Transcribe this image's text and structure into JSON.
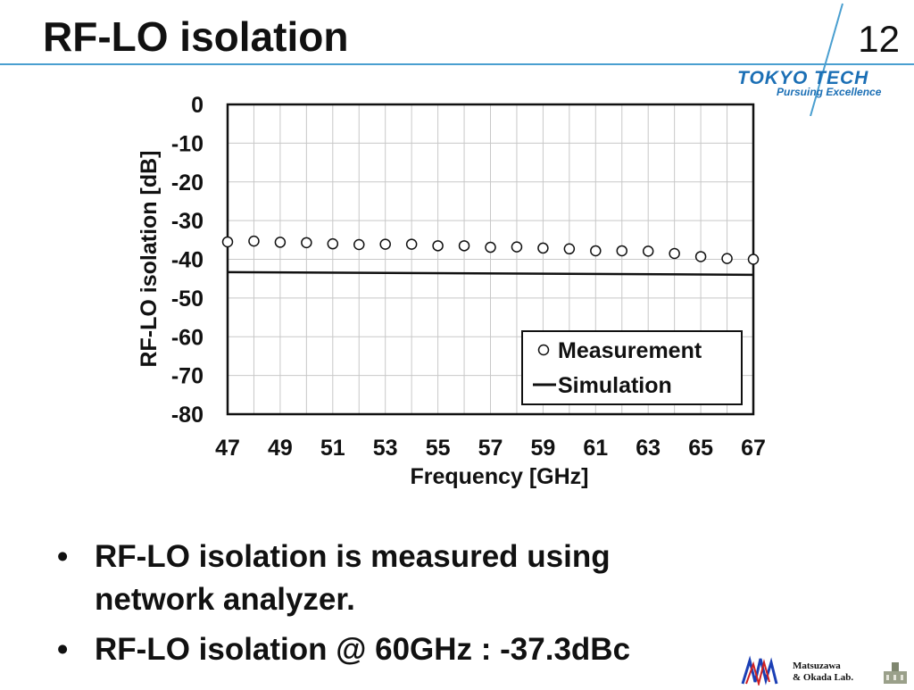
{
  "slide": {
    "title": "RF-LO isolation",
    "number": "12"
  },
  "logo": {
    "main": "TOKYO TECH",
    "sub": "Pursuing Excellence"
  },
  "lab": {
    "line1": "Matsuzawa",
    "line2": "& Okada Lab."
  },
  "bullets": [
    "RF-LO isolation is measured  using network analyzer.",
    "RF-LO isolation @ 60GHz : -37.3dBc"
  ],
  "chart_data": {
    "type": "line",
    "xlabel": "Frequency [GHz]",
    "ylabel": "RF-LO isolation [dB]",
    "xlim": [
      47,
      67
    ],
    "ylim": [
      -80,
      0
    ],
    "x_ticks": [
      47,
      49,
      51,
      53,
      55,
      57,
      59,
      61,
      63,
      65,
      67
    ],
    "y_ticks": [
      0,
      -10,
      -20,
      -30,
      -40,
      -50,
      -60,
      -70,
      -80
    ],
    "grid": true,
    "legend_position": "bottom-right",
    "series": [
      {
        "name": "Measurement",
        "style": "markers",
        "marker": "open-circle",
        "x": [
          47,
          48,
          49,
          50,
          51,
          52,
          53,
          54,
          55,
          56,
          57,
          58,
          59,
          60,
          61,
          62,
          63,
          64,
          65,
          66,
          67
        ],
        "y": [
          -35.5,
          -35.3,
          -35.6,
          -35.7,
          -36.0,
          -36.2,
          -36.1,
          -36.1,
          -36.5,
          -36.5,
          -36.9,
          -36.8,
          -37.1,
          -37.3,
          -37.8,
          -37.8,
          -37.9,
          -38.5,
          -39.3,
          -39.8,
          -40.0
        ]
      },
      {
        "name": "Simulation",
        "style": "line",
        "x": [
          47,
          67
        ],
        "y": [
          -43.3,
          -44.0
        ]
      }
    ]
  }
}
